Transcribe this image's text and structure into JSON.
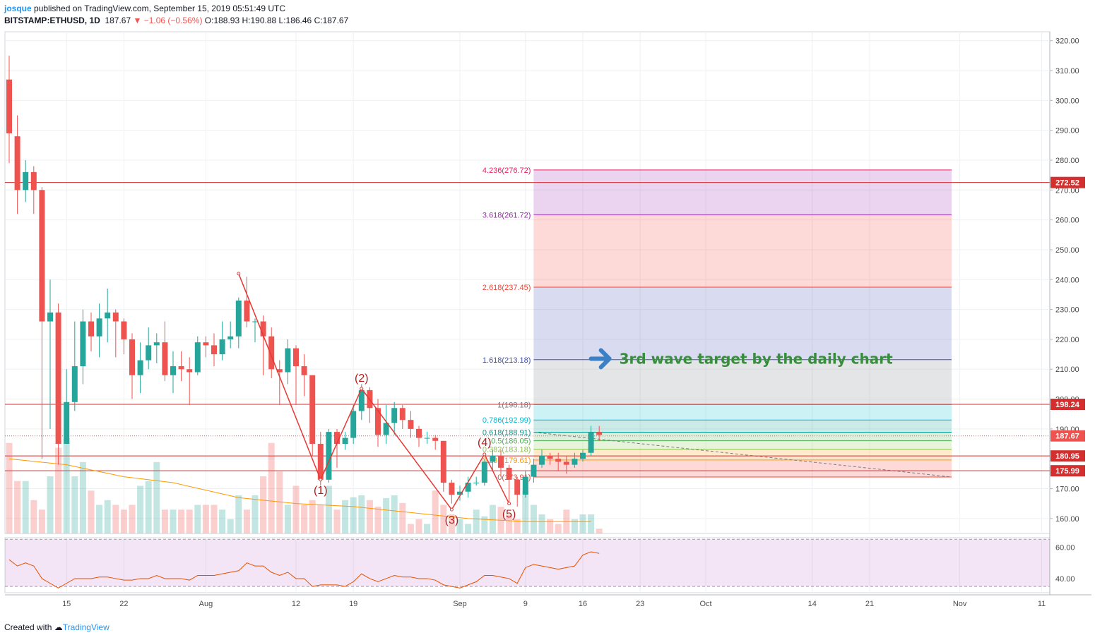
{
  "header": {
    "author": "josque",
    "published": "published on TradingView.com, September 15, 2019 05:51:49 UTC",
    "symbol": "BITSTAMP:ETHUSD, 1D",
    "last": "187.67",
    "change": "▼ −1.06 (−0.56%)",
    "ohlc": "O:188.93 H:190.88 L:186.46 C:187.67"
  },
  "footer": {
    "created_with": "Created with",
    "brand": "TradingView"
  },
  "colors": {
    "up": "#26a69a",
    "down": "#ef5350",
    "wave": "#e53935",
    "annotation": "#388e3c",
    "rsi": "#e65100",
    "ma": "#ff9800"
  },
  "chart_data": {
    "type": "candlestick",
    "symbol": "BITSTAMP:ETHUSD",
    "timeframe": "1D",
    "price_axis": {
      "ylim": [
        155,
        323
      ],
      "ticks": [
        160,
        170,
        180,
        190,
        200,
        210,
        220,
        230,
        240,
        250,
        260,
        270,
        280,
        290,
        300,
        310,
        320
      ],
      "tick_labels": [
        "160.00",
        "170.00",
        "180.00",
        "190.00",
        "200.00",
        "210.00",
        "220.00",
        "230.00",
        "240.00",
        "250.00",
        "260.00",
        "270.00",
        "280.00",
        "290.00",
        "300.00",
        "310.00",
        "320.00"
      ]
    },
    "time_axis": {
      "start_date": "2019-07-08",
      "ticks": [
        {
          "label": "15",
          "day": 7
        },
        {
          "label": "22",
          "day": 14
        },
        {
          "label": "Aug",
          "day": 24
        },
        {
          "label": "12",
          "day": 35
        },
        {
          "label": "19",
          "day": 42
        },
        {
          "label": "Sep",
          "day": 55
        },
        {
          "label": "9",
          "day": 63
        },
        {
          "label": "16",
          "day": 70
        },
        {
          "label": "23",
          "day": 77
        },
        {
          "label": "Oct",
          "day": 85
        },
        {
          "label": "14",
          "day": 98
        },
        {
          "label": "21",
          "day": 105
        },
        {
          "label": "Nov",
          "day": 116
        },
        {
          "label": "11",
          "day": 126
        }
      ]
    },
    "candles": [
      [
        307,
        289,
        315,
        279
      ],
      [
        288,
        270,
        295,
        262
      ],
      [
        270,
        276,
        280,
        266
      ],
      [
        276,
        270,
        278,
        262
      ],
      [
        270,
        226,
        271,
        180
      ],
      [
        226,
        229,
        240,
        190
      ],
      [
        229,
        185,
        232,
        178
      ],
      [
        185,
        199,
        210,
        186
      ],
      [
        199,
        211,
        226,
        196
      ],
      [
        211,
        226,
        230,
        205
      ],
      [
        226,
        221,
        229,
        216
      ],
      [
        221,
        227,
        232,
        214
      ],
      [
        227,
        229,
        237,
        219
      ],
      [
        229,
        226,
        230,
        214
      ],
      [
        226,
        220,
        227,
        215
      ],
      [
        220,
        208,
        222,
        200
      ],
      [
        208,
        213,
        219,
        202
      ],
      [
        213,
        218,
        224,
        210
      ],
      [
        218,
        219,
        222,
        212
      ],
      [
        219,
        208,
        226,
        206
      ],
      [
        208,
        211,
        216,
        202
      ],
      [
        211,
        210,
        216,
        206
      ],
      [
        210,
        209,
        214,
        198
      ],
      [
        209,
        219,
        221,
        208
      ],
      [
        219,
        218,
        221,
        214
      ],
      [
        218,
        215,
        222,
        211
      ],
      [
        215,
        220,
        226,
        213
      ],
      [
        220,
        221,
        226,
        217
      ],
      [
        221,
        233,
        234,
        217
      ],
      [
        233,
        226,
        241,
        224
      ],
      [
        226,
        226,
        227,
        219
      ],
      [
        226,
        221,
        228,
        208
      ],
      [
        221,
        210,
        224,
        207
      ],
      [
        210,
        209,
        213,
        198
      ],
      [
        209,
        217,
        220,
        205
      ],
      [
        217,
        211,
        218,
        198
      ],
      [
        211,
        208,
        215,
        201
      ],
      [
        208,
        185,
        208,
        181
      ],
      [
        185,
        173,
        189,
        171
      ],
      [
        173,
        189,
        190,
        172
      ],
      [
        189,
        185,
        190,
        177
      ],
      [
        185,
        187,
        189,
        183
      ],
      [
        187,
        196,
        198,
        185
      ],
      [
        196,
        203,
        205,
        193
      ],
      [
        203,
        197,
        204,
        192
      ],
      [
        197,
        188,
        200,
        184
      ],
      [
        188,
        192,
        198,
        185
      ],
      [
        192,
        197,
        199,
        188
      ],
      [
        197,
        193,
        198,
        190
      ],
      [
        193,
        190,
        196,
        187
      ],
      [
        190,
        187,
        191,
        184
      ],
      [
        187,
        187,
        189,
        185
      ],
      [
        187,
        186,
        188,
        183
      ],
      [
        186,
        172,
        186,
        169
      ],
      [
        172,
        168,
        173,
        165
      ],
      [
        168,
        169,
        171,
        166
      ],
      [
        169,
        172,
        174,
        167
      ],
      [
        172,
        172,
        174,
        171
      ],
      [
        172,
        179,
        180,
        171
      ],
      [
        179,
        181,
        183,
        176
      ],
      [
        181,
        177,
        183,
        174
      ],
      [
        177,
        173,
        178,
        165
      ],
      [
        173,
        168,
        174,
        164
      ],
      [
        168,
        174,
        176,
        167
      ],
      [
        174,
        178,
        180,
        172
      ],
      [
        178,
        181,
        183,
        177
      ],
      [
        181,
        180,
        182,
        178
      ],
      [
        180,
        179,
        182,
        176
      ],
      [
        179,
        178,
        181,
        175
      ],
      [
        178,
        180,
        182,
        177
      ],
      [
        180,
        182,
        183,
        179
      ],
      [
        182,
        189,
        191,
        181
      ],
      [
        189,
        188,
        191,
        186
      ]
    ],
    "volume_relative": [
      0.95,
      0.55,
      0.55,
      0.35,
      0.25,
      0.6,
      0.9,
      1.0,
      0.6,
      0.75,
      0.45,
      0.3,
      0.35,
      0.3,
      0.25,
      0.3,
      0.5,
      0.55,
      0.75,
      0.25,
      0.25,
      0.25,
      0.25,
      0.3,
      0.3,
      0.3,
      0.25,
      0.15,
      0.4,
      0.25,
      0.4,
      0.6,
      0.95,
      0.65,
      0.3,
      0.5,
      0.3,
      0.35,
      0.3,
      0.5,
      0.25,
      0.35,
      0.38,
      0.4,
      0.35,
      0.28,
      0.37,
      0.4,
      0.32,
      0.1,
      0.15,
      0.1,
      0.45,
      0.3,
      0.2,
      0.15,
      0.1,
      0.25,
      0.18,
      0.3,
      0.28,
      0.2,
      0.15,
      0.45,
      0.3,
      0.2,
      0.15,
      0.1,
      0.25,
      0.15,
      0.2,
      0.2,
      0.05
    ],
    "volume_ma_price": [
      [
        0,
        180
      ],
      [
        7,
        178
      ],
      [
        14,
        174
      ],
      [
        20,
        172
      ],
      [
        28,
        167
      ],
      [
        35,
        165
      ],
      [
        42,
        164
      ],
      [
        49,
        162
      ],
      [
        56,
        160
      ],
      [
        63,
        159
      ],
      [
        71,
        159
      ]
    ],
    "horizontal_levels": [
      {
        "price": 272.52,
        "label": "272.52"
      },
      {
        "price": 198.24,
        "label": "198.24"
      },
      {
        "price": 180.95,
        "label": "180.95"
      },
      {
        "price": 175.99,
        "label": "175.99"
      }
    ],
    "last_price": {
      "price": 187.67,
      "label": "187.67"
    },
    "fib_extension": {
      "start_day": 64,
      "end_day": 115,
      "levels": [
        {
          "ratio": "4.236",
          "price": 276.72,
          "label": "4.236(276.72)",
          "color": "#e91e63"
        },
        {
          "ratio": "3.618",
          "price": 261.72,
          "label": "3.618(261.72)",
          "color": "#9c27b0"
        },
        {
          "ratio": "2.618",
          "price": 237.45,
          "label": "2.618(237.45)",
          "color": "#f44336"
        },
        {
          "ratio": "1.618",
          "price": 213.18,
          "label": "1.618(213.18)",
          "color": "#3f51b5"
        },
        {
          "ratio": "1",
          "price": 198.18,
          "label": "1(198.18)",
          "color": "#787b86"
        },
        {
          "ratio": "0.786",
          "price": 192.99,
          "label": "0.786(192.99)",
          "color": "#00bcd4"
        },
        {
          "ratio": "0.618",
          "price": 188.91,
          "label": "0.618(188.91)",
          "color": "#009688"
        },
        {
          "ratio": "0.5",
          "price": 186.05,
          "label": "0.5(186.05)",
          "color": "#4caf50"
        },
        {
          "ratio": "0.382",
          "price": 183.18,
          "label": "0.382(183.18)",
          "color": "#8bc34a"
        },
        {
          "ratio": "0.236",
          "price": 179.61,
          "label": "0.236(179.61)",
          "color": "#ff9800"
        },
        {
          "ratio": "0",
          "price": 173.91,
          "label": "0(173.91)",
          "color": "#f44336"
        }
      ],
      "dashed_trend": [
        [
          64,
          188.9
        ],
        [
          115,
          173.9
        ]
      ]
    },
    "elliott_waves": [
      {
        "label": "(1)",
        "day": 38,
        "price": 173
      },
      {
        "label": "(2)",
        "day": 43,
        "price": 203
      },
      {
        "label": "(3)",
        "day": 54,
        "price": 163
      },
      {
        "label": "(4)",
        "day": 58,
        "price": 181.5
      },
      {
        "label": "(5)",
        "day": 61,
        "price": 165
      }
    ],
    "wave_line": [
      [
        28,
        242
      ],
      [
        38,
        173
      ],
      [
        43,
        203.5
      ],
      [
        54,
        163
      ],
      [
        58,
        181.5
      ],
      [
        61,
        165
      ]
    ],
    "annotation": {
      "text": "3rd wave target by the daily chart",
      "price": 213.5
    },
    "rsi": {
      "ylim": [
        31,
        66
      ],
      "ticks": [
        40,
        60
      ],
      "tick_labels": [
        "40.00",
        "60.00"
      ],
      "band": [
        35,
        65
      ],
      "values": [
        52,
        48,
        50,
        48,
        40,
        37,
        34,
        37,
        40,
        40,
        40,
        41,
        41,
        40,
        39,
        39,
        40,
        40,
        42,
        40,
        40,
        40,
        39,
        42,
        42,
        42,
        43,
        44,
        45,
        50,
        48,
        48,
        44,
        42,
        44,
        40,
        40,
        35,
        36,
        36,
        36,
        35,
        38,
        43,
        40,
        38,
        40,
        42,
        41,
        41,
        40,
        40,
        39,
        36,
        35,
        34,
        36,
        38,
        42,
        42,
        41,
        40,
        37,
        47,
        49,
        48,
        47,
        46,
        47,
        48,
        55,
        57,
        56
      ]
    }
  }
}
